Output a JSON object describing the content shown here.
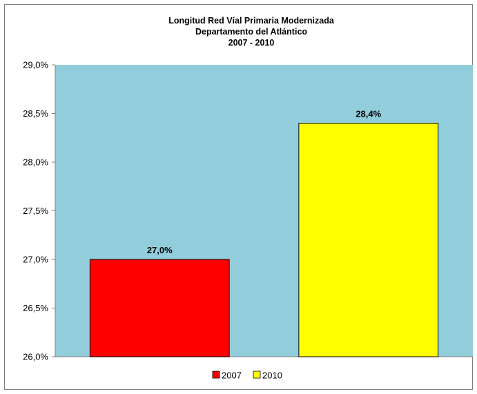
{
  "chart_data": {
    "type": "bar",
    "title_lines": [
      "Longitud  Red Víal Primaria Modernizada",
      "Departamento del Atlántico",
      "2007 - 2010"
    ],
    "categories": [
      "2007",
      "2010"
    ],
    "values": [
      27.0,
      28.4
    ],
    "value_labels": [
      "27,0%",
      "28,4%"
    ],
    "ylim": [
      26.0,
      29.0
    ],
    "y_ticks": [
      26.0,
      26.5,
      27.0,
      27.5,
      28.0,
      28.5,
      29.0
    ],
    "y_tick_labels": [
      "26,0%",
      "26,5%",
      "27,0%",
      "27,5%",
      "28,0%",
      "28,5%",
      "29,0%"
    ],
    "grid": false,
    "legend_position": "bottom",
    "legend": [
      {
        "label": "2007",
        "color": "#ff0000"
      },
      {
        "label": "2010",
        "color": "#ffff00"
      }
    ],
    "colors": {
      "plot_background": "#92cddc",
      "bar_outline": "#000000",
      "axis": "#808080"
    }
  }
}
